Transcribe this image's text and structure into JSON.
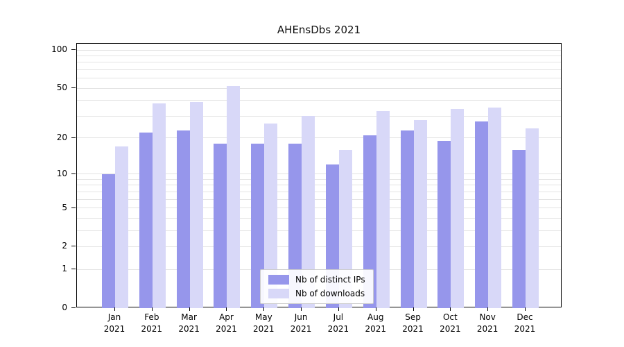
{
  "chart_data": {
    "type": "bar",
    "title": "AHEnsDbs 2021",
    "categories": [
      "Jan 2021",
      "Feb 2021",
      "Mar 2021",
      "Apr 2021",
      "May 2021",
      "Jun 2021",
      "Jul 2021",
      "Aug 2021",
      "Sep 2021",
      "Oct 2021",
      "Nov 2021",
      "Dec 2021"
    ],
    "series": [
      {
        "name": "Nb of distinct IPs",
        "color": "#9696eb",
        "values": [
          10,
          22,
          23,
          18,
          18,
          18,
          12,
          21,
          23,
          19,
          27,
          16
        ]
      },
      {
        "name": "Nb of downloads",
        "color": "#d8d8f8",
        "values": [
          17,
          38,
          39,
          52,
          26,
          30,
          16,
          33,
          28,
          34,
          35,
          24
        ]
      }
    ],
    "yscale": "log1p",
    "ylim": [
      0,
      100
    ],
    "y_ticks": [
      0,
      1,
      2,
      5,
      10,
      20,
      50,
      100
    ],
    "y_minor_gridlines": [
      1,
      2,
      3,
      4,
      5,
      6,
      7,
      8,
      9,
      10,
      20,
      30,
      40,
      50,
      60,
      70,
      80,
      90,
      100
    ],
    "grid": true,
    "legend_position": "lower center",
    "xlabel": "",
    "ylabel": ""
  },
  "colors": {
    "grid": "#e3e3e3",
    "axis": "#000000",
    "legend_border": "#cccccc",
    "series_ips": "#9696eb",
    "series_downloads": "#d8d8f8"
  }
}
